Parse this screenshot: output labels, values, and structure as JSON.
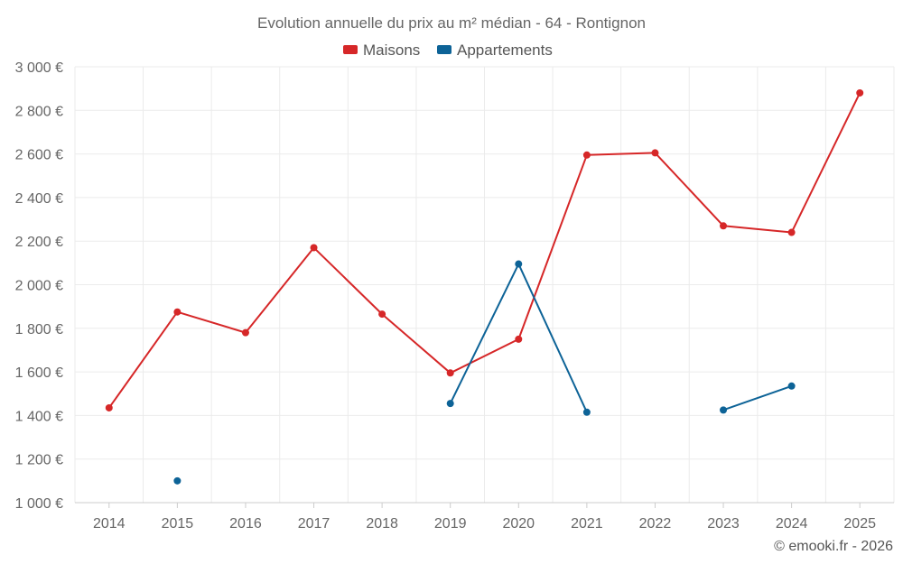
{
  "chart_data": {
    "type": "line",
    "title": "Evolution annuelle du prix au m² médian - 64 - Rontignon",
    "categories": [
      "2014",
      "2015",
      "2016",
      "2017",
      "2018",
      "2019",
      "2020",
      "2021",
      "2022",
      "2023",
      "2024",
      "2025"
    ],
    "ylim": [
      1000,
      3000
    ],
    "yticks": [
      1000,
      1200,
      1400,
      1600,
      1800,
      2000,
      2200,
      2400,
      2600,
      2800,
      3000
    ],
    "ytick_labels": [
      "1 000 €",
      "1 200 €",
      "1 400 €",
      "1 600 €",
      "1 800 €",
      "2 000 €",
      "2 200 €",
      "2 400 €",
      "2 600 €",
      "2 800 €",
      "3 000 €"
    ],
    "grid": true,
    "legend_position": "top-center",
    "series": [
      {
        "name": "Maisons",
        "color": "#d62728",
        "values": [
          1435,
          1875,
          1780,
          2170,
          1865,
          1595,
          1750,
          2595,
          2605,
          2270,
          2240,
          2880
        ]
      },
      {
        "name": "Appartements",
        "color": "#0d6397",
        "values": [
          null,
          1100,
          null,
          null,
          null,
          1455,
          2095,
          1415,
          null,
          1425,
          1535,
          null
        ]
      }
    ]
  },
  "credit": "© emooki.fr - 2026"
}
